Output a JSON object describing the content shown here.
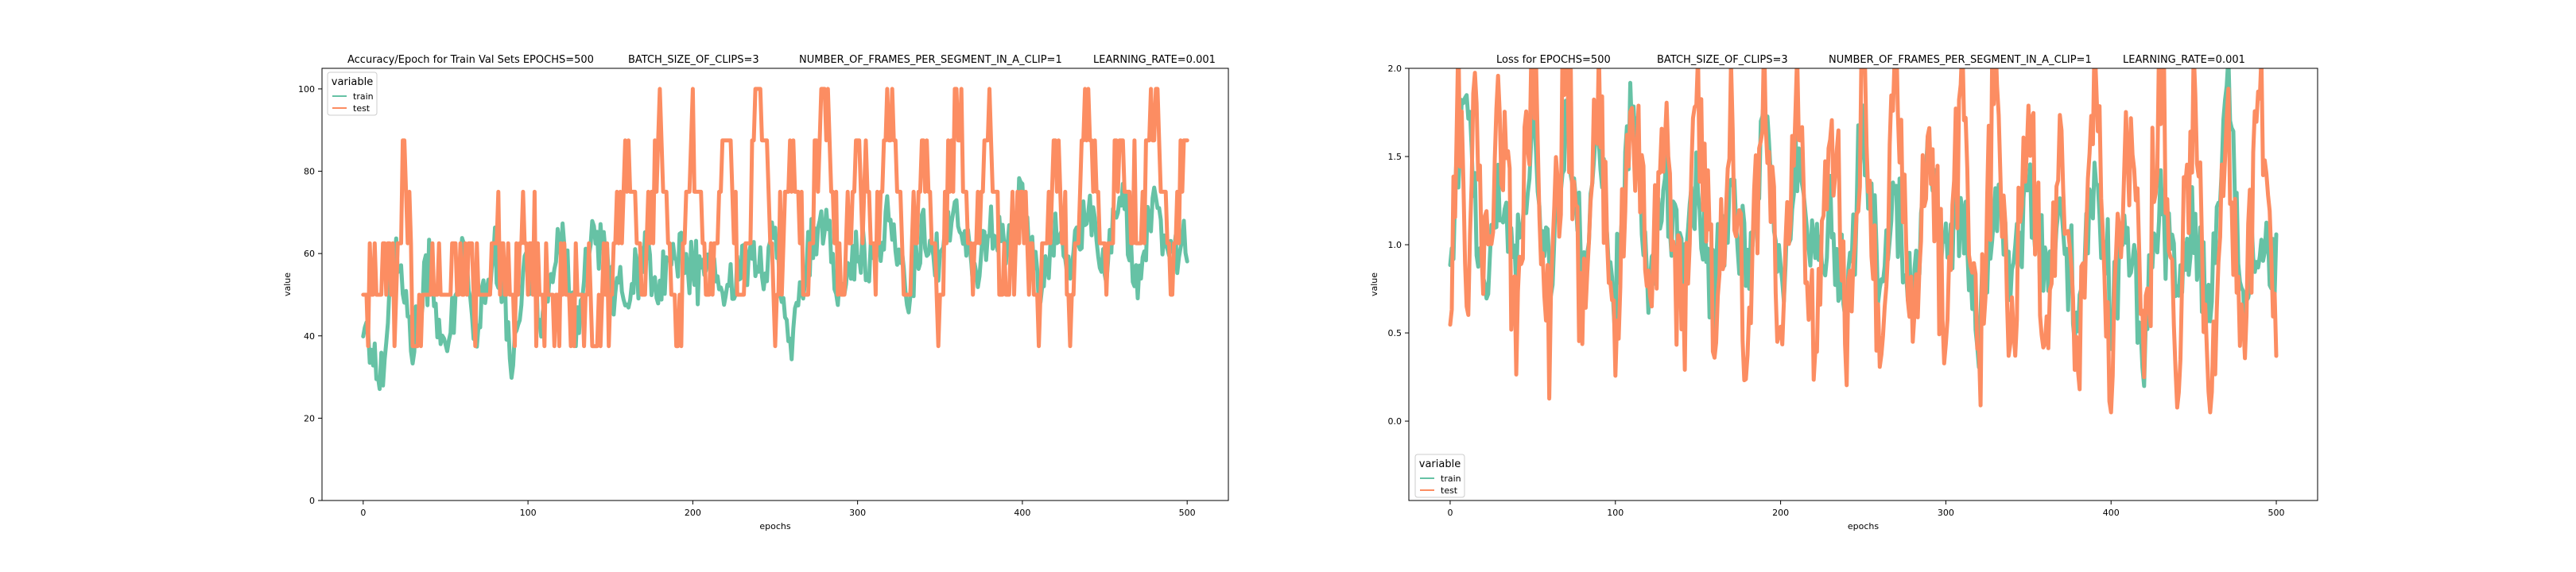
{
  "chart_data": [
    {
      "type": "line",
      "title_segments": [
        "Accuracy/Epoch for Train Val Sets EPOCHS=500",
        "BATCH_SIZE_OF_CLIPS=3",
        "NUMBER_OF_FRAMES_PER_SEGMENT_IN_A_CLIP=1",
        "LEARNING_RATE=0.001"
      ],
      "xlabel": "epochs",
      "ylabel": "value",
      "xlim": [
        -25,
        525
      ],
      "ylim": [
        0,
        105
      ],
      "xticks": [
        0,
        100,
        200,
        300,
        400,
        500
      ],
      "xtick_labels": [
        "0",
        "100",
        "200",
        "300",
        "400",
        "500"
      ],
      "yticks": [
        0,
        20,
        40,
        60,
        80,
        100
      ],
      "ytick_labels": [
        "0",
        "20",
        "40",
        "60",
        "80",
        "100"
      ],
      "grid": false,
      "legend": {
        "title": "variable",
        "placement": "top-left",
        "entries": [
          "train",
          "test"
        ]
      },
      "series": [
        {
          "name": "train",
          "color": "#66c2a5",
          "x": [
            0,
            10,
            20,
            30,
            40,
            50,
            60,
            70,
            80,
            90,
            100,
            110,
            120,
            130,
            140,
            150,
            160,
            170,
            180,
            190,
            200,
            210,
            220,
            230,
            240,
            250,
            260,
            270,
            280,
            290,
            300,
            310,
            320,
            330,
            340,
            350,
            360,
            370,
            380,
            390,
            400,
            410,
            420,
            430,
            440,
            450,
            460,
            470,
            480,
            490,
            500
          ],
          "values": [
            44,
            29,
            62,
            37,
            58,
            33,
            60,
            41,
            63,
            35,
            58,
            45,
            62,
            42,
            66,
            55,
            48,
            60,
            50,
            62,
            55,
            58,
            48,
            60,
            55,
            63,
            39,
            60,
            66,
            50,
            62,
            55,
            69,
            50,
            66,
            60,
            70,
            56,
            65,
            62,
            73,
            50,
            66,
            60,
            70,
            57,
            73,
            54,
            70,
            60,
            62
          ]
        },
        {
          "name": "test",
          "color": "#fc8d62",
          "x": [
            0,
            5,
            10,
            15,
            20,
            25,
            30,
            40,
            50,
            60,
            70,
            80,
            90,
            100,
            110,
            120,
            130,
            140,
            150,
            160,
            170,
            180,
            190,
            200,
            210,
            220,
            230,
            240,
            250,
            260,
            270,
            280,
            290,
            300,
            310,
            320,
            330,
            340,
            350,
            360,
            370,
            380,
            390,
            400,
            410,
            420,
            430,
            440,
            450,
            460,
            470,
            480,
            490,
            500
          ],
          "values": [
            50,
            50,
            50,
            62,
            50,
            87,
            50,
            50,
            50,
            62,
            50,
            62,
            50,
            62,
            50,
            50,
            50,
            50,
            50,
            87,
            50,
            87,
            37,
            87,
            50,
            87,
            50,
            100,
            50,
            87,
            50,
            100,
            50,
            87,
            62,
            100,
            50,
            87,
            50,
            100,
            62,
            87,
            50,
            75,
            37,
            87,
            50,
            100,
            50,
            87,
            62,
            100,
            50,
            100
          ]
        }
      ]
    },
    {
      "type": "line",
      "title_segments": [
        "Loss for  EPOCHS=500",
        "BATCH_SIZE_OF_CLIPS=3",
        "NUMBER_OF_FRAMES_PER_SEGMENT_IN_A_CLIP=1",
        "LEARNING_RATE=0.001"
      ],
      "xlabel": "epochs",
      "ylabel": "value",
      "xlim": [
        -25,
        525
      ],
      "ylim": [
        -0.45,
        2.0
      ],
      "xticks": [
        0,
        100,
        200,
        300,
        400,
        500
      ],
      "xtick_labels": [
        "0",
        "100",
        "200",
        "300",
        "400",
        "500"
      ],
      "yticks": [
        0.0,
        0.5,
        1.0,
        1.5,
        2.0
      ],
      "ytick_labels": [
        "0.0",
        "0.5",
        "1.0",
        "1.5",
        "2.0"
      ],
      "grid": false,
      "legend": {
        "title": "variable",
        "placement": "bottom-left",
        "entries": [
          "train",
          "test"
        ]
      },
      "series": [
        {
          "name": "train",
          "color": "#66c2a5",
          "x": [
            0,
            10,
            20,
            30,
            40,
            50,
            60,
            70,
            80,
            90,
            100,
            110,
            120,
            130,
            140,
            150,
            160,
            170,
            180,
            190,
            200,
            210,
            220,
            230,
            240,
            250,
            260,
            270,
            280,
            290,
            300,
            310,
            320,
            330,
            340,
            350,
            360,
            370,
            380,
            390,
            400,
            410,
            420,
            430,
            440,
            450,
            460,
            470,
            480,
            490,
            500
          ],
          "values": [
            1.0,
            1.9,
            0.7,
            1.4,
            0.9,
            1.6,
            0.8,
            1.7,
            1.0,
            1.5,
            0.7,
            1.9,
            0.8,
            1.4,
            0.9,
            1.3,
            0.6,
            1.5,
            0.8,
            1.8,
            0.7,
            1.4,
            0.9,
            1.2,
            0.6,
            1.7,
            0.8,
            1.3,
            0.6,
            1.6,
            0.9,
            1.2,
            0.5,
            1.3,
            0.7,
            1.4,
            0.8,
            1.1,
            0.6,
            1.4,
            0.7,
            1.0,
            0.5,
            1.2,
            0.8,
            1.1,
            0.6,
            2.0,
            0.7,
            1.0,
            0.8
          ]
        },
        {
          "name": "test",
          "color": "#fc8d62",
          "x": [
            0,
            5,
            10,
            15,
            20,
            30,
            40,
            50,
            60,
            70,
            80,
            90,
            100,
            110,
            120,
            130,
            140,
            150,
            160,
            170,
            180,
            190,
            200,
            210,
            220,
            230,
            240,
            250,
            260,
            270,
            280,
            290,
            300,
            310,
            320,
            330,
            340,
            350,
            360,
            370,
            380,
            390,
            400,
            410,
            420,
            430,
            440,
            450,
            460,
            470,
            480,
            490,
            500
          ],
          "values": [
            0.75,
            2.0,
            0.7,
            2.0,
            0.8,
            1.8,
            0.6,
            2.0,
            0.5,
            2.0,
            0.6,
            1.9,
            0.4,
            2.0,
            0.6,
            1.8,
            0.45,
            2.0,
            0.5,
            1.7,
            0.3,
            2.0,
            0.4,
            2.0,
            0.2,
            1.9,
            0.4,
            2.0,
            0.3,
            2.0,
            0.35,
            1.8,
            0.25,
            2.0,
            0.3,
            1.9,
            0.25,
            2.0,
            0.3,
            1.6,
            0.2,
            2.0,
            0.25,
            1.9,
            0.3,
            2.0,
            0.15,
            2.0,
            0.2,
            1.8,
            0.3,
            2.0,
            0.2
          ]
        }
      ]
    }
  ]
}
